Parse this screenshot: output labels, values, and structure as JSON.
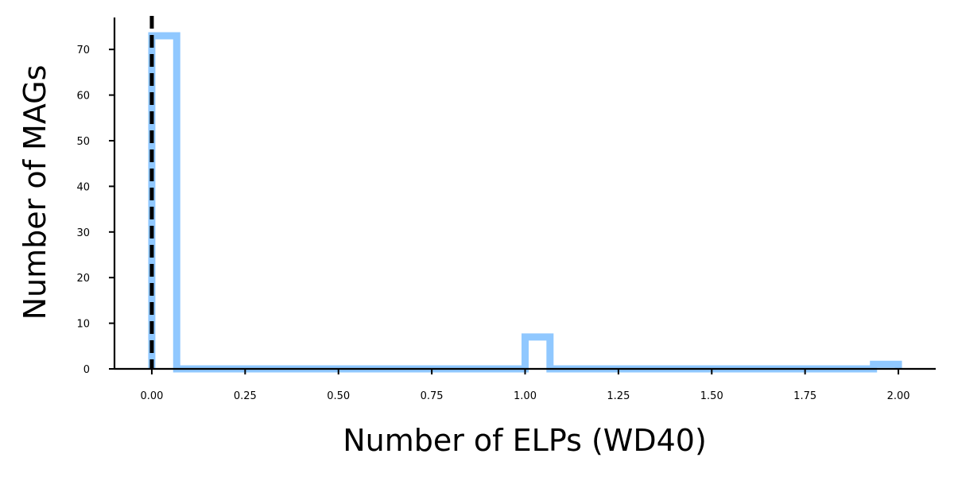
{
  "chart_data": {
    "type": "bar",
    "histtype": "step",
    "title": "",
    "xlabel": "Number of ELPs (WD40)",
    "ylabel": "Number of MAGs",
    "xlim": [
      -0.1,
      2.1
    ],
    "ylim": [
      0,
      77
    ],
    "x_ticks": [
      "0.00",
      "0.25",
      "0.50",
      "0.75",
      "1.00",
      "1.25",
      "1.50",
      "1.75",
      "2.00"
    ],
    "y_ticks": [
      "0",
      "10",
      "20",
      "30",
      "40",
      "50",
      "60",
      "70"
    ],
    "bin_edges": [
      0.0,
      0.0667,
      0.1333,
      0.2,
      0.2667,
      0.3333,
      0.4,
      0.4667,
      0.5333,
      0.6,
      0.6667,
      0.7333,
      0.8,
      0.8667,
      0.9333,
      1.0,
      1.0667,
      1.1333,
      1.2,
      1.2667,
      1.3333,
      1.4,
      1.4667,
      1.5333,
      1.6,
      1.6667,
      1.7333,
      1.8,
      1.8667,
      1.9333,
      2.0
    ],
    "counts": [
      73,
      0,
      0,
      0,
      0,
      0,
      0,
      0,
      0,
      0,
      0,
      0,
      0,
      0,
      0,
      7,
      0,
      0,
      0,
      0,
      0,
      0,
      0,
      0,
      0,
      0,
      0,
      0,
      0,
      1
    ],
    "reference_line_x": 0,
    "grid": false,
    "colors": {
      "histogram": "#90c8ff",
      "reference_line": "#000000"
    }
  }
}
